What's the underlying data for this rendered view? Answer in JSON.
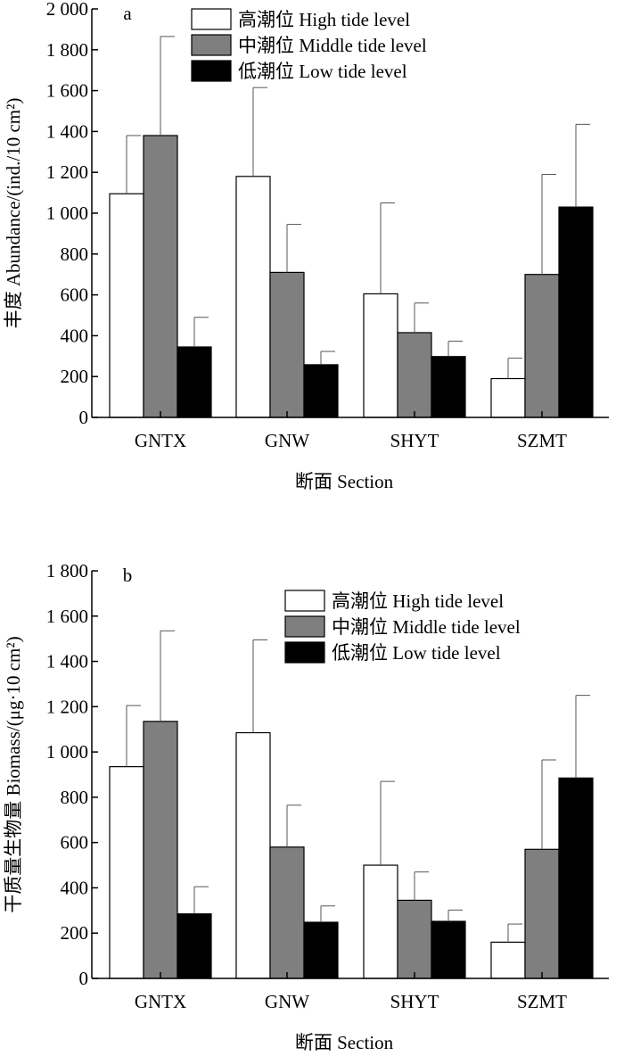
{
  "chart_data": [
    {
      "type": "bar",
      "panel_label": "a",
      "categories": [
        "GNTX",
        "GNW",
        "SHYT",
        "SZMT"
      ],
      "series": [
        {
          "name": "高潮位 High tide level",
          "color": "#ffffff",
          "values": [
            1095,
            1180,
            605,
            190
          ],
          "errors": [
            285,
            435,
            445,
            100
          ]
        },
        {
          "name": "中潮位 Middle tide level",
          "color": "#7f7f7f",
          "values": [
            1380,
            710,
            415,
            700
          ],
          "errors": [
            485,
            235,
            145,
            490
          ]
        },
        {
          "name": "低潮位 Low tide level",
          "color": "#000000",
          "values": [
            345,
            258,
            298,
            1030
          ],
          "errors": [
            145,
            65,
            75,
            405
          ]
        }
      ],
      "ylim": [
        0,
        2000
      ],
      "yticks": [
        0,
        200,
        400,
        600,
        800,
        1000,
        1200,
        1400,
        1600,
        1800,
        2000
      ],
      "ytick_labels": [
        "0",
        "200",
        "400",
        "600",
        "800",
        "1 000",
        "1 200",
        "1 400",
        "1 600",
        "1 800",
        "2 000"
      ],
      "ylabel": "丰度 Abundance/(ind./10 cm²)",
      "xlabel": "断面 Section",
      "legend_position": "top-center"
    },
    {
      "type": "bar",
      "panel_label": "b",
      "categories": [
        "GNTX",
        "GNW",
        "SHYT",
        "SZMT"
      ],
      "series": [
        {
          "name": "高潮位 High tide level",
          "color": "#ffffff",
          "values": [
            935,
            1085,
            500,
            160
          ],
          "errors": [
            270,
            410,
            370,
            80
          ]
        },
        {
          "name": "中潮位 Middle tide level",
          "color": "#7f7f7f",
          "values": [
            1135,
            580,
            345,
            570
          ],
          "errors": [
            400,
            185,
            125,
            395
          ]
        },
        {
          "name": "低潮位 Low tide level",
          "color": "#000000",
          "values": [
            285,
            248,
            252,
            885
          ],
          "errors": [
            120,
            72,
            50,
            365
          ]
        }
      ],
      "ylim": [
        0,
        1800
      ],
      "yticks": [
        0,
        200,
        400,
        600,
        800,
        1000,
        1200,
        1400,
        1600,
        1800
      ],
      "ytick_labels": [
        "0",
        "200",
        "400",
        "600",
        "800",
        "1 000",
        "1 200",
        "1 400",
        "1 600",
        "1 800"
      ],
      "ylabel": "干质量生物量 Biomass/(μg·10 cm²)",
      "xlabel": "断面 Section",
      "legend_position": "top-right"
    }
  ]
}
